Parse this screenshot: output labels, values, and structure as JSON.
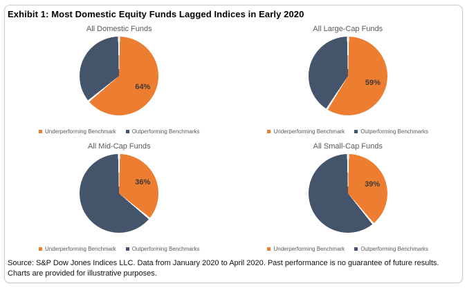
{
  "exhibit_title": "Exhibit 1: Most Domestic Equity Funds Lagged Indices in Early 2020",
  "source_note": "Source: S&P Dow Jones Indices LLC. Data from January 2020 to April 2020. Past performance is no guarantee of future results. Charts are provided for illustrative purposes.",
  "colors": {
    "underperforming": "#ED7D31",
    "outperforming": "#44546A",
    "chart_title_text": "#595959",
    "legend_text": "#595959",
    "data_label_text": "#3f3a35"
  },
  "legend": {
    "underperforming_label": "Underperforming Benchmark",
    "outperforming_label": "Outperforming Benchmarks"
  },
  "chart_data": [
    {
      "type": "pie",
      "title": "All Domestic Funds",
      "categories": [
        "Underperforming Benchmark",
        "Outperforming Benchmarks"
      ],
      "values": [
        64,
        36
      ],
      "colors": [
        "#ED7D31",
        "#44546A"
      ],
      "data_label": "64%",
      "legend_position": "bottom"
    },
    {
      "type": "pie",
      "title": "All Large-Cap Funds",
      "categories": [
        "Underperforming Benchmark",
        "Outperforming Benchmarks"
      ],
      "values": [
        59,
        41
      ],
      "colors": [
        "#ED7D31",
        "#44546A"
      ],
      "data_label": "59%",
      "legend_position": "bottom"
    },
    {
      "type": "pie",
      "title": "All Mid-Cap Funds",
      "categories": [
        "Underperforming Benchmark",
        "Outperforming Benchmarks"
      ],
      "values": [
        36,
        64
      ],
      "colors": [
        "#ED7D31",
        "#44546A"
      ],
      "data_label": "36%",
      "legend_position": "bottom"
    },
    {
      "type": "pie",
      "title": "All Small-Cap Funds",
      "categories": [
        "Underperforming Benchmark",
        "Outperforming Benchmarks"
      ],
      "values": [
        39,
        61
      ],
      "colors": [
        "#ED7D31",
        "#44546A"
      ],
      "data_label": "39%",
      "legend_position": "bottom"
    }
  ]
}
